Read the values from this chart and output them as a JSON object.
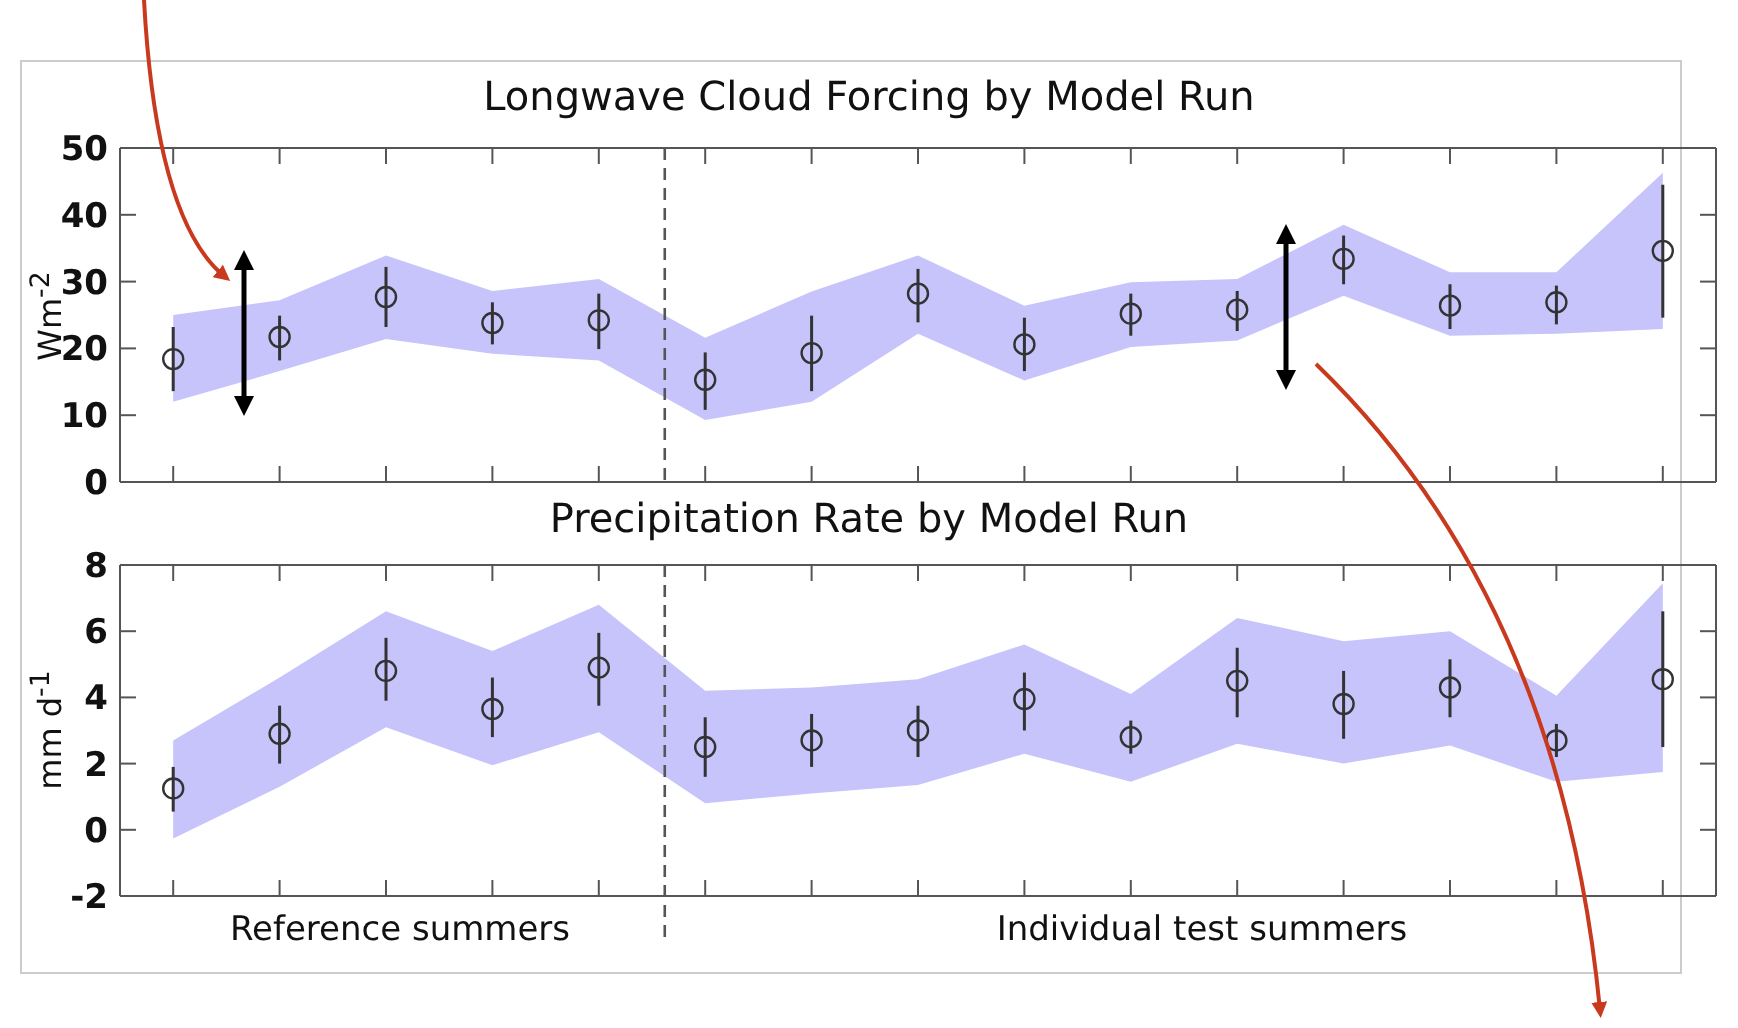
{
  "chart_data": [
    {
      "type": "scatter",
      "title": "Longwave Cloud Forcing by Model Run",
      "ylabel": "Wm$^{-2}$",
      "categories": [
        null,
        null,
        null,
        null,
        null,
        null,
        null,
        null,
        null,
        null,
        null,
        null,
        null,
        null,
        null
      ],
      "ylim": [
        0,
        50
      ],
      "yticks": [
        0,
        10,
        20,
        30,
        40,
        50
      ],
      "tick_labels": "y",
      "marker": "circle",
      "series": [
        {
          "color": "#333333",
          "values": [
            18.4,
            21.7,
            27.7,
            23.8,
            24.2,
            15.3,
            19.3,
            28.2,
            20.6,
            25.2,
            25.8,
            33.4,
            26.4,
            26.9,
            34.6
          ],
          "errors": [
            [
              13.6,
              23.2
            ],
            [
              18.2,
              24.9
            ],
            [
              23.2,
              32.2
            ],
            [
              20.6,
              26.9
            ],
            [
              19.9,
              28.2
            ],
            [
              10.8,
              19.4
            ],
            [
              13.6,
              24.9
            ],
            [
              23.9,
              31.9
            ],
            [
              16.6,
              24.6
            ],
            [
              21.9,
              28.2
            ],
            [
              22.6,
              28.6
            ],
            [
              29.6,
              36.9
            ],
            [
              22.9,
              29.6
            ],
            [
              23.6,
              29.4
            ],
            [
              24.6,
              44.5
            ]
          ],
          "lower": [
            12,
            16.6,
            21.4,
            19.2,
            18.2,
            9.3,
            12,
            22.2,
            15.2,
            20.2,
            21.2,
            27.9,
            21.9,
            22.2,
            22.9
          ],
          "upper": [
            25,
            27.2,
            33.9,
            28.6,
            30.4,
            21.6,
            28.5,
            33.9,
            26.4,
            29.9,
            30.4,
            38.5,
            31.4,
            31.4,
            46.3
          ]
        }
      ]
    },
    {
      "type": "scatter",
      "title": "Precipitation Rate by Model Run",
      "ylabel": "mm d$^{-1}$",
      "categories": [
        null,
        null,
        null,
        null,
        null,
        null,
        null,
        null,
        null,
        null,
        null,
        null,
        null,
        null,
        null
      ],
      "ylim": [
        -2,
        8
      ],
      "yticks": [
        -2,
        0,
        2,
        4,
        6,
        8
      ],
      "tick_labels": "y",
      "marker": "circle",
      "series": [
        {
          "color": "#333333",
          "values": [
            1.25,
            2.9,
            4.8,
            3.65,
            4.9,
            2.5,
            2.7,
            3.0,
            3.95,
            2.8,
            4.5,
            3.8,
            4.3,
            2.7,
            4.55
          ],
          "errors": [
            [
              0.55,
              1.9
            ],
            [
              2.0,
              3.75
            ],
            [
              3.9,
              5.8
            ],
            [
              2.8,
              4.6
            ],
            [
              3.75,
              5.95
            ],
            [
              1.6,
              3.4
            ],
            [
              1.9,
              3.5
            ],
            [
              2.2,
              3.75
            ],
            [
              3.0,
              4.75
            ],
            [
              2.3,
              3.3
            ],
            [
              3.4,
              5.5
            ],
            [
              2.75,
              4.8
            ],
            [
              3.4,
              5.15
            ],
            [
              2.2,
              3.2
            ],
            [
              2.5,
              6.6
            ]
          ],
          "lower": [
            -0.26,
            1.3,
            3.1,
            1.95,
            2.95,
            0.8,
            1.1,
            1.35,
            2.3,
            1.45,
            2.6,
            2.0,
            2.55,
            1.45,
            1.75
          ],
          "upper": [
            2.7,
            4.6,
            6.6,
            5.4,
            6.8,
            4.2,
            4.3,
            4.55,
            5.6,
            4.1,
            6.4,
            5.7,
            6.0,
            4.05,
            7.45
          ]
        }
      ],
      "annotations": [
        "Reference summers",
        "Individual test summers"
      ]
    }
  ]
}
